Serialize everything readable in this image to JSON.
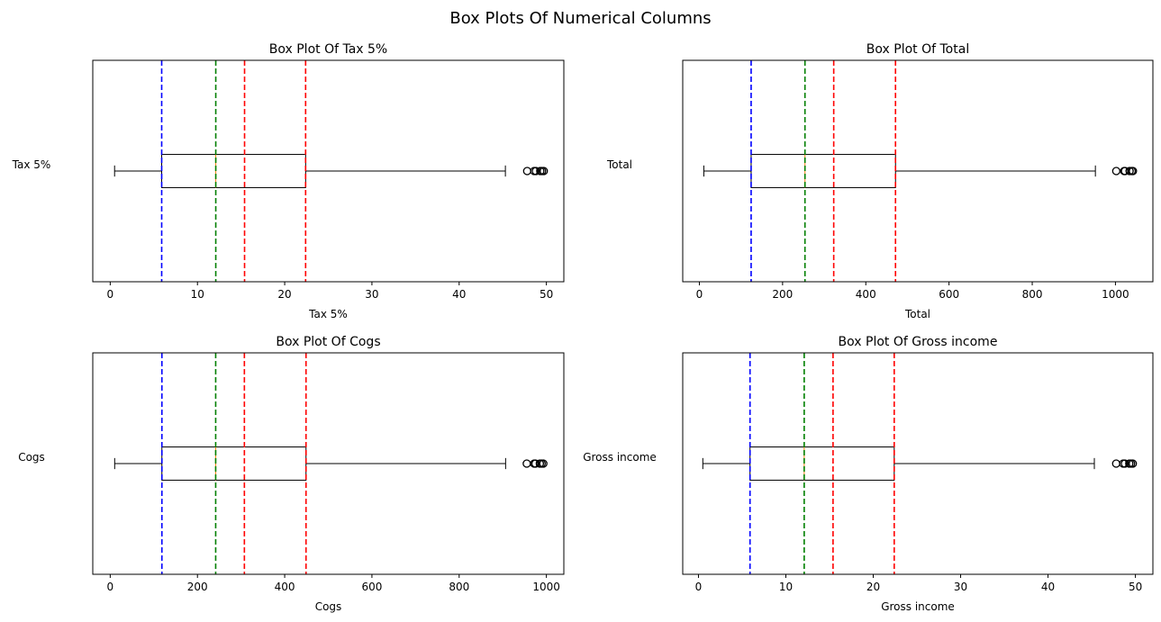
{
  "title": "Box Plots Of Numerical Columns",
  "chart_data": [
    {
      "type": "box",
      "title": "Box Plot Of Tax 5%",
      "xlabel": "Tax 5%",
      "ylabel": "Tax 5%",
      "xlim": [
        -2.0,
        52.0
      ],
      "xticks": [
        0,
        10,
        20,
        30,
        40,
        50
      ],
      "box": {
        "whisker_low": 0.5,
        "q1": 5.9,
        "median": 12.1,
        "q3": 22.4,
        "whisker_high": 45.3
      },
      "outliers": [
        47.8,
        48.6,
        48.8,
        49.3,
        49.5,
        49.7
      ],
      "vlines": [
        {
          "value": 5.9,
          "color": "#0000ff"
        },
        {
          "value": 12.1,
          "color": "#008000"
        },
        {
          "value": 15.4,
          "color": "#ff0000"
        },
        {
          "value": 22.4,
          "color": "#ff0000"
        }
      ],
      "median_color": "#ff7f0e"
    },
    {
      "type": "box",
      "title": "Box Plot Of Total",
      "xlabel": "Total",
      "ylabel": "Total",
      "xlim": [
        -40,
        1090
      ],
      "xticks": [
        0,
        200,
        400,
        600,
        800,
        1000
      ],
      "box": {
        "whisker_low": 10.7,
        "q1": 124.4,
        "median": 253.8,
        "q3": 471.4,
        "whisker_high": 951.8
      },
      "outliers": [
        1002,
        1021,
        1023,
        1034,
        1039,
        1042
      ],
      "vlines": [
        {
          "value": 124.4,
          "color": "#0000ff"
        },
        {
          "value": 253.8,
          "color": "#008000"
        },
        {
          "value": 322.9,
          "color": "#ff0000"
        },
        {
          "value": 471.4,
          "color": "#ff0000"
        }
      ],
      "median_color": "#ff7f0e"
    },
    {
      "type": "box",
      "title": "Box Plot Of Cogs",
      "xlabel": "Cogs",
      "ylabel": "Cogs",
      "xlim": [
        -40,
        1040
      ],
      "xticks": [
        0,
        200,
        400,
        600,
        800,
        1000
      ],
      "box": {
        "whisker_low": 10.2,
        "q1": 118.5,
        "median": 241.8,
        "q3": 448.9,
        "whisker_high": 906.5
      },
      "outliers": [
        955,
        972,
        975,
        985,
        989,
        993
      ],
      "vlines": [
        {
          "value": 118.5,
          "color": "#0000ff"
        },
        {
          "value": 241.8,
          "color": "#008000"
        },
        {
          "value": 307.6,
          "color": "#ff0000"
        },
        {
          "value": 448.9,
          "color": "#ff0000"
        }
      ],
      "median_color": "#ff7f0e"
    },
    {
      "type": "box",
      "title": "Box Plot Of Gross income",
      "xlabel": "Gross income",
      "ylabel": "Gross income",
      "xlim": [
        -1.8,
        52.0
      ],
      "xticks": [
        0,
        10,
        20,
        30,
        40,
        50
      ],
      "box": {
        "whisker_low": 0.5,
        "q1": 5.9,
        "median": 12.1,
        "q3": 22.4,
        "whisker_high": 45.3
      },
      "outliers": [
        47.8,
        48.6,
        48.8,
        49.3,
        49.5,
        49.7
      ],
      "vlines": [
        {
          "value": 5.9,
          "color": "#0000ff"
        },
        {
          "value": 12.1,
          "color": "#008000"
        },
        {
          "value": 15.4,
          "color": "#ff0000"
        },
        {
          "value": 22.4,
          "color": "#ff0000"
        }
      ],
      "median_color": "#ff7f0e"
    }
  ]
}
